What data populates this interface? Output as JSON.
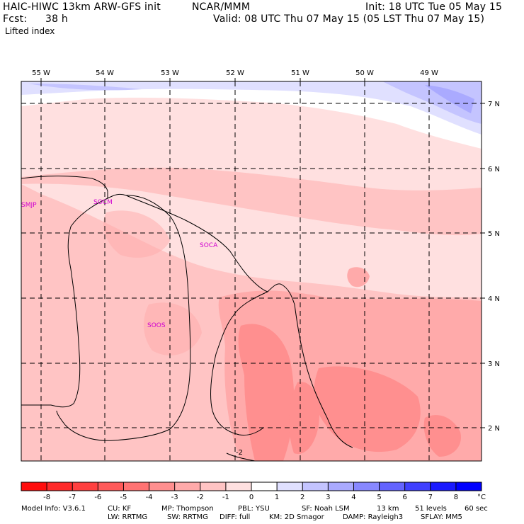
{
  "header": {
    "model_line": "HAIC-HIWC 13km ARW-GFS init",
    "org": "NCAR/MMM",
    "init": "Init: 18 UTC Tue 05 May 15",
    "fcst_label": "Fcst:",
    "fcst_value": "38 h",
    "valid": "Valid: 08 UTC Thu 07 May 15 (05 LST Thu 07 May 15)",
    "field": "Lifted index"
  },
  "map": {
    "lon_labels": [
      "55 W",
      "54 W",
      "53 W",
      "52 W",
      "51 W",
      "50 W",
      "49 W"
    ],
    "lat_labels": [
      "7 N",
      "6 N",
      "5 N",
      "4 N",
      "3 N",
      "2 N"
    ],
    "stations": [
      "SMJP",
      "SOCM",
      "SOCA",
      "SOOS"
    ],
    "contour_label": "-2"
  },
  "colorbar": {
    "ticks": [
      "-8",
      "-7",
      "-6",
      "-5",
      "-4",
      "-3",
      "-2",
      "-1",
      "0",
      "1",
      "2",
      "3",
      "4",
      "5",
      "6",
      "7",
      "8"
    ],
    "unit": "°C",
    "colors": [
      "#ff0d0d",
      "#ff2a2a",
      "#ff4040",
      "#ff5a5a",
      "#ff7373",
      "#ff8f8f",
      "#ffaaaa",
      "#ffc4c4",
      "#ffe0e0",
      "#ffffff",
      "#e0e0ff",
      "#c4c4ff",
      "#aaaaff",
      "#8888ff",
      "#6464ff",
      "#4040ff",
      "#1a1aff",
      "#0000ff"
    ]
  },
  "footer": {
    "row1": [
      "Model Info: V3.6.1",
      "CU: KF",
      "MP: Thompson",
      "PBL: YSU",
      "SF: Noah LSM",
      "13 km",
      "51 levels",
      "60 sec"
    ],
    "row2": [
      "LW: RRTMG",
      "SW: RRTMG",
      "DIFF: full",
      "KM: 2D Smagor",
      "DAMP: Rayleigh3",
      "SFLAY: MM5"
    ]
  }
}
